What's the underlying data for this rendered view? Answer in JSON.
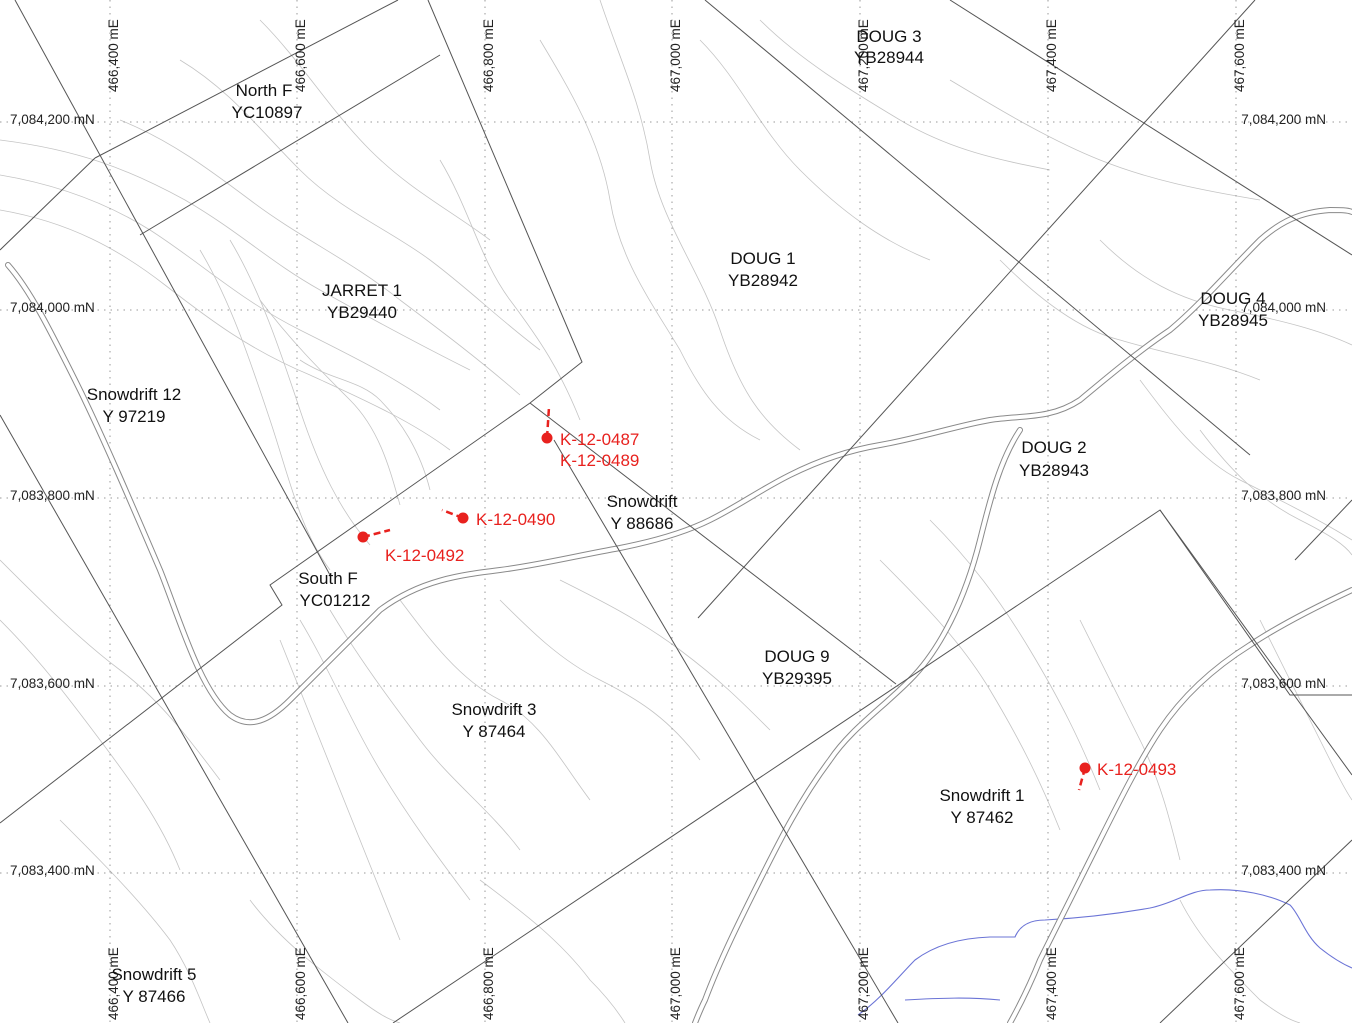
{
  "grid": {
    "eastings": [
      "466,400 mE",
      "466,600 mE",
      "466,800 mE",
      "467,000 mE",
      "467,200 mE",
      "467,400 mE",
      "467,600 mE"
    ],
    "northings": [
      "7,084,200 mN",
      "7,084,000 mN",
      "7,083,800 mN",
      "7,083,600 mN",
      "7,083,400 mN"
    ]
  },
  "claims": [
    {
      "name": "North F",
      "code": "YC10897"
    },
    {
      "name": "DOUG 3",
      "code": "YB28944"
    },
    {
      "name": "DOUG 1",
      "code": "YB28942"
    },
    {
      "name": "JARRET 1",
      "code": "YB29440"
    },
    {
      "name": "DOUG 4",
      "code": "YB28945"
    },
    {
      "name": "Snowdrift 12",
      "code": "Y 97219"
    },
    {
      "name": "DOUG 2",
      "code": "YB28943"
    },
    {
      "name": "Snowdrift",
      "code": "Y 88686"
    },
    {
      "name": "South F",
      "code": "YC01212"
    },
    {
      "name": "DOUG 9",
      "code": "YB29395"
    },
    {
      "name": "Snowdrift 3",
      "code": "Y 87464"
    },
    {
      "name": "Snowdrift 1",
      "code": "Y 87462"
    },
    {
      "name": "Snowdrift 5",
      "code": "Y 87466"
    }
  ],
  "drillholes": [
    "K-12-0487",
    "K-12-0489",
    "K-12-0490",
    "K-12-0492",
    "K-12-0493"
  ],
  "colors": {
    "drillhole": "#e8211e",
    "stream": "#6b74d6",
    "claim_line": "#555555",
    "contour": "#c4c4c4"
  }
}
